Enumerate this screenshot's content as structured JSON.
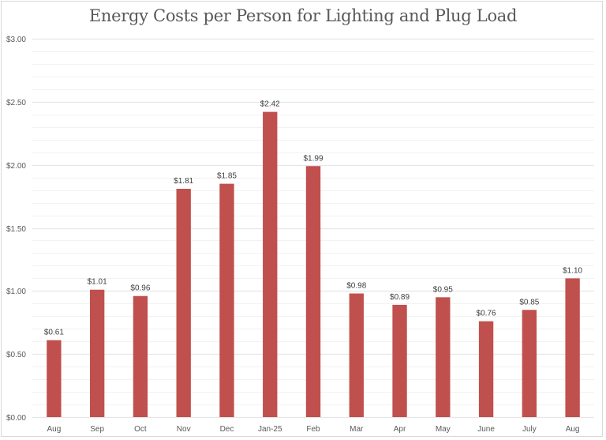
{
  "chart_data": {
    "type": "bar",
    "title": "Energy Costs per Person for Lighting and Plug Load",
    "xlabel": "",
    "ylabel": "",
    "categories": [
      "Aug",
      "Sep",
      "Oct",
      "Nov",
      "Dec",
      "Jan-25",
      "Feb",
      "Mar",
      "Apr",
      "May",
      "June",
      "July",
      "Aug"
    ],
    "values": [
      0.61,
      1.01,
      0.96,
      1.81,
      1.85,
      2.42,
      1.99,
      0.98,
      0.89,
      0.95,
      0.76,
      0.85,
      1.1
    ],
    "data_labels": [
      "$0.61",
      "$1.01",
      "$0.96",
      "$1.81",
      "$1.85",
      "$2.42",
      "$1.99",
      "$0.98",
      "$0.89",
      "$0.95",
      "$0.76",
      "$0.85",
      "$1.10"
    ],
    "ylim": [
      0,
      3.0
    ],
    "y_major_ticks": [
      0,
      0.5,
      1.0,
      1.5,
      2.0,
      2.5,
      3.0
    ],
    "y_tick_labels": [
      "$0.00",
      "$0.50",
      "$1.00",
      "$1.50",
      "$2.00",
      "$2.50",
      "$3.00"
    ],
    "y_minor_step": 0.1,
    "grid": true,
    "legend": "none",
    "colors": {
      "bar": "#c0504d",
      "major_grid": "#e6e6e6",
      "minor_grid": "#f2f2f2",
      "text": "#595959"
    }
  }
}
